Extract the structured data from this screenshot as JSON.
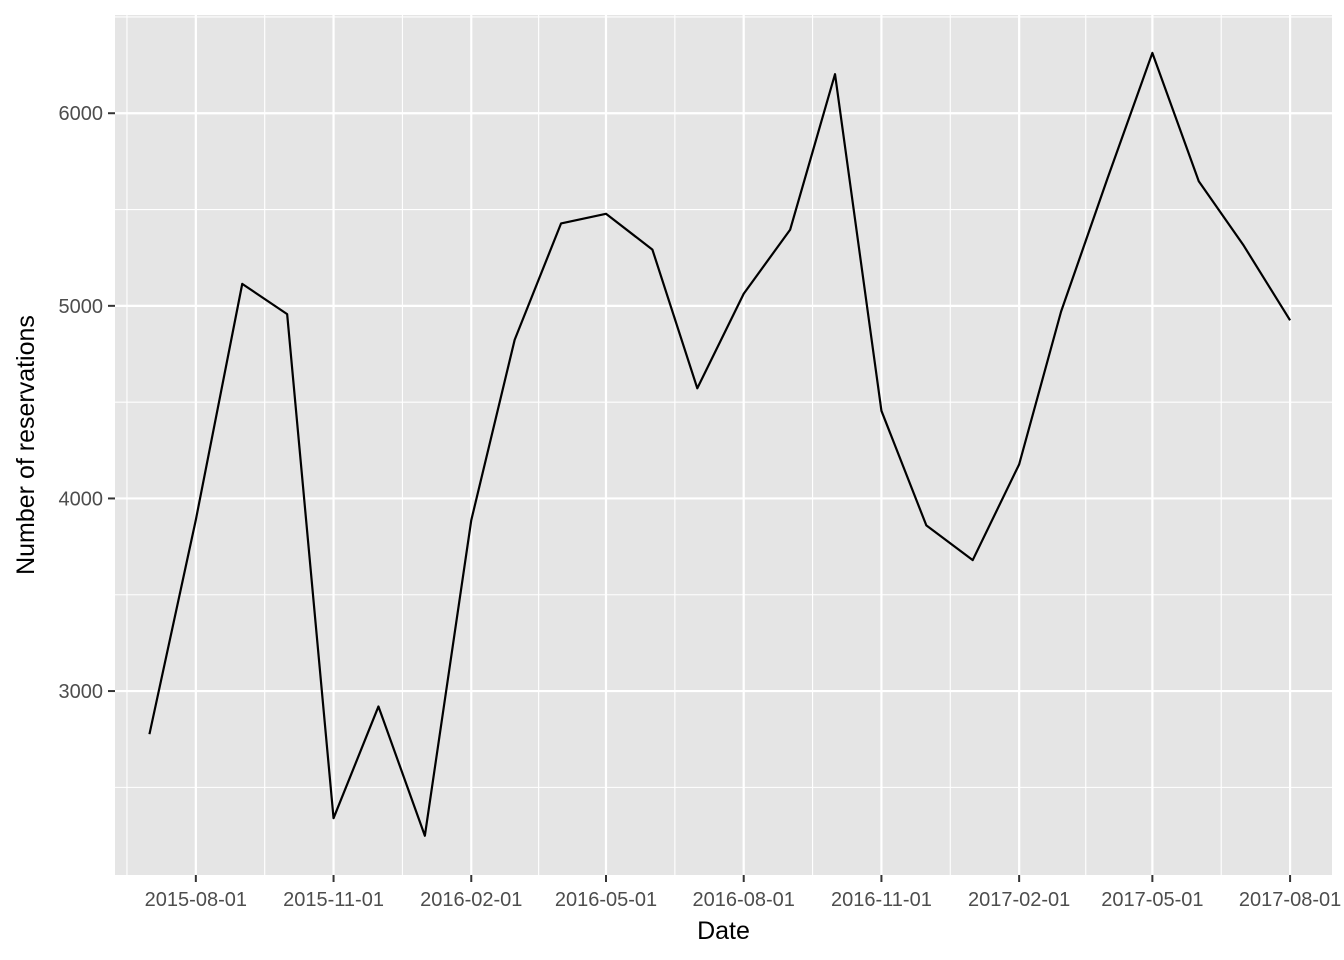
{
  "chart_data": {
    "type": "line",
    "title": "",
    "xlabel": "Date",
    "ylabel": "Number of reservations",
    "x_type": "date",
    "x": [
      "2015-07-01",
      "2015-08-01",
      "2015-09-01",
      "2015-10-01",
      "2015-11-01",
      "2015-12-01",
      "2016-01-01",
      "2016-02-01",
      "2016-03-01",
      "2016-04-01",
      "2016-05-01",
      "2016-06-01",
      "2016-07-01",
      "2016-08-01",
      "2016-09-01",
      "2016-10-01",
      "2016-11-01",
      "2016-12-01",
      "2017-01-01",
      "2017-02-01",
      "2017-03-01",
      "2017-04-01",
      "2017-05-01",
      "2017-06-01",
      "2017-07-01",
      "2017-08-01"
    ],
    "series": [
      {
        "values": [
          2776,
          3889,
          5114,
          4957,
          2340,
          2920,
          2249,
          3887,
          4824,
          5428,
          5478,
          5292,
          4572,
          5063,
          5395,
          6203,
          4455,
          3860,
          3680,
          4177,
          4970,
          5661,
          6313,
          5647,
          5313,
          4925
        ]
      }
    ],
    "x_ticks": [
      "2015-08-01",
      "2015-11-01",
      "2016-02-01",
      "2016-05-01",
      "2016-08-01",
      "2016-11-01",
      "2017-02-01",
      "2017-05-01",
      "2017-08-01"
    ],
    "y_ticks": [
      3000,
      4000,
      5000,
      6000
    ],
    "xlim": [
      "2015-06-08",
      "2017-08-29"
    ],
    "ylim": [
      2045,
      6510
    ],
    "grid": true,
    "panel_background": "#e5e5e5",
    "grid_color": "#ffffff",
    "line_color": "#000000"
  }
}
